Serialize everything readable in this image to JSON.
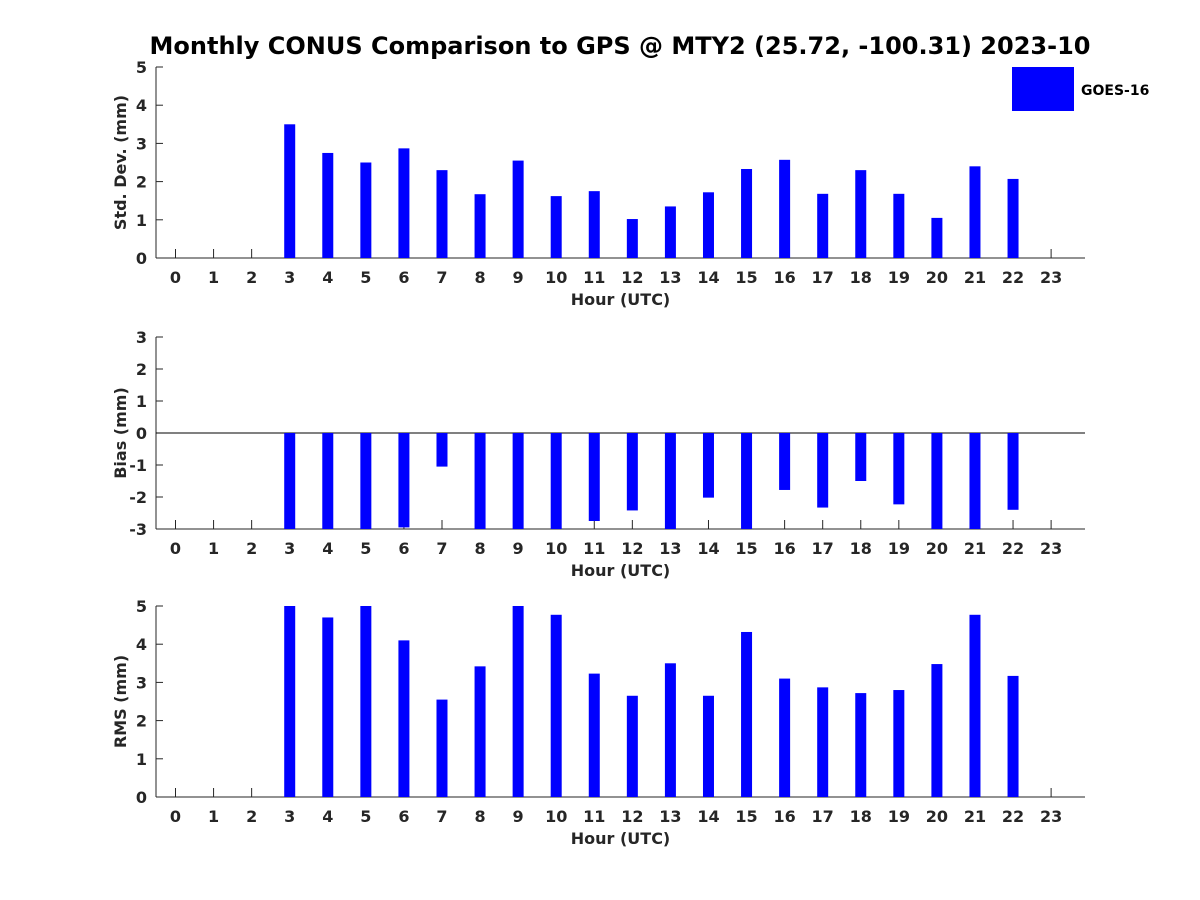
{
  "chart_data": {
    "type": "bar",
    "title": "Monthly CONUS Comparison to GPS @ MTY2 (25.72, -100.31) 2023-10",
    "legend": {
      "entries": [
        "GOES-16"
      ],
      "placement": "top-right"
    },
    "series_color": "#0000ff",
    "categories": [
      "0",
      "1",
      "2",
      "3",
      "4",
      "5",
      "6",
      "7",
      "8",
      "9",
      "10",
      "11",
      "12",
      "13",
      "14",
      "15",
      "16",
      "17",
      "18",
      "19",
      "20",
      "21",
      "22",
      "23"
    ],
    "xlabel": "Hour (UTC)",
    "panels": [
      {
        "ylabel": "Std. Dev. (mm)",
        "ylim": [
          0,
          5
        ],
        "yticks": [
          0,
          1,
          2,
          3,
          4,
          5
        ],
        "zero_line": false,
        "series": [
          {
            "name": "GOES-16",
            "values": [
              null,
              null,
              null,
              3.5,
              2.75,
              2.5,
              2.87,
              2.3,
              1.67,
              2.55,
              1.62,
              1.75,
              1.02,
              1.35,
              1.72,
              2.33,
              2.57,
              1.68,
              2.3,
              1.68,
              1.05,
              2.4,
              2.07,
              null
            ]
          }
        ]
      },
      {
        "ylabel": "Bias (mm)",
        "ylim": [
          -3,
          3
        ],
        "yticks": [
          -3,
          -2,
          -1,
          0,
          1,
          2,
          3
        ],
        "zero_line": true,
        "series": [
          {
            "name": "GOES-16",
            "values": [
              null,
              null,
              null,
              -3.0,
              -3.0,
              -3.0,
              -2.95,
              -1.05,
              -3.0,
              -3.0,
              -3.0,
              -2.75,
              -2.42,
              -3.0,
              -2.02,
              -3.0,
              -1.78,
              -2.33,
              -1.5,
              -2.23,
              -3.0,
              -3.0,
              -2.4,
              null
            ]
          }
        ]
      },
      {
        "ylabel": "RMS (mm)",
        "ylim": [
          0,
          5
        ],
        "yticks": [
          0,
          1,
          2,
          3,
          4,
          5
        ],
        "zero_line": false,
        "series": [
          {
            "name": "GOES-16",
            "values": [
              null,
              null,
              null,
              5.0,
              4.7,
              5.0,
              4.1,
              2.55,
              3.42,
              5.0,
              4.77,
              3.23,
              2.65,
              3.5,
              2.65,
              4.32,
              3.1,
              2.87,
              2.72,
              2.8,
              3.48,
              4.77,
              3.17,
              null
            ]
          }
        ]
      }
    ]
  }
}
